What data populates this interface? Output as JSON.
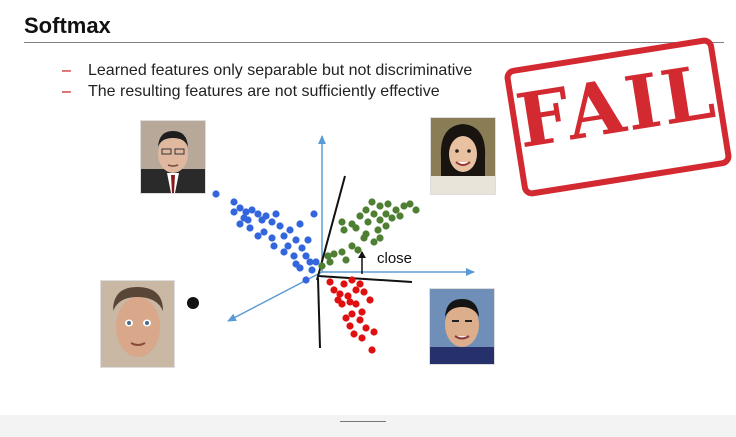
{
  "slide": {
    "title": "Softmax",
    "bullets": [
      "Learned features only separable but not discriminative",
      "The resulting features are not sufficiently effective"
    ],
    "bullet_marker": "–",
    "stamp_text": "FAIL",
    "annotation": "close"
  },
  "colors": {
    "accent_red": "#d32a32",
    "axis_blue": "#5b9bd5",
    "cluster_blue": "#3366dd",
    "cluster_green": "#4e7f32",
    "cluster_red": "#e01010"
  },
  "icons": {
    "face_top_left": "face-photo-icon",
    "face_top_right": "face-photo-icon",
    "face_bottom_left": "face-photo-icon",
    "face_bottom_right": "face-photo-icon"
  }
}
